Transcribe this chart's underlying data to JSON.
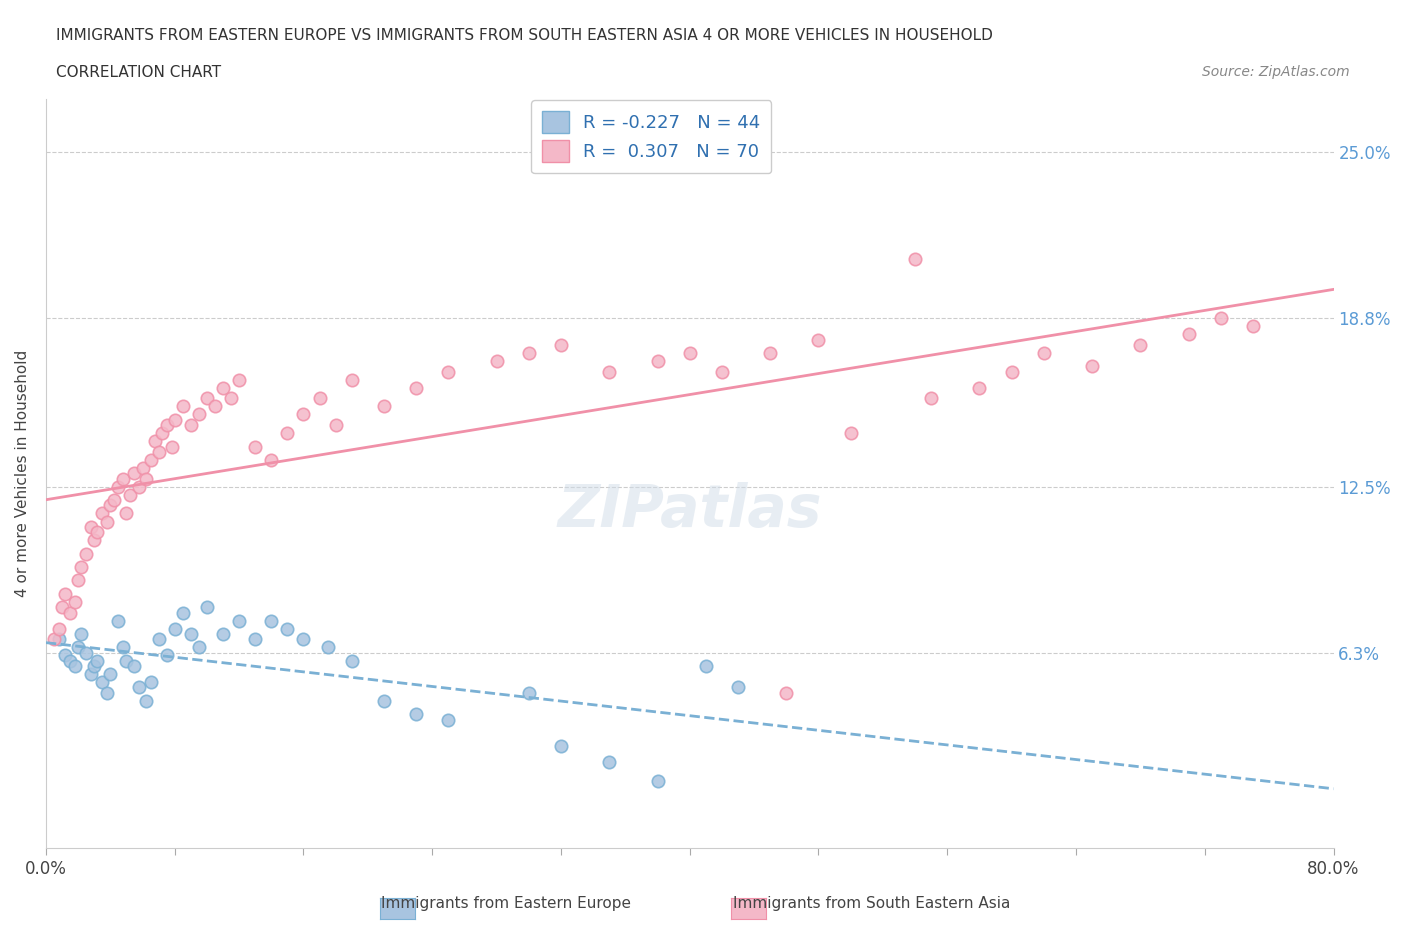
{
  "title_line1": "IMMIGRANTS FROM EASTERN EUROPE VS IMMIGRANTS FROM SOUTH EASTERN ASIA 4 OR MORE VEHICLES IN HOUSEHOLD",
  "title_line2": "CORRELATION CHART",
  "source_text": "Source: ZipAtlas.com",
  "xlabel": "",
  "ylabel": "4 or more Vehicles in Household",
  "xlim": [
    0.0,
    0.8
  ],
  "ylim": [
    -0.01,
    0.27
  ],
  "ytick_labels": [
    "",
    "6.3%",
    "",
    "12.5%",
    "",
    "18.8%",
    "",
    "25.0%"
  ],
  "ytick_values": [
    0.0,
    0.063,
    0.094,
    0.125,
    0.156,
    0.188,
    0.219,
    0.25
  ],
  "xtick_labels": [
    "0.0%",
    "",
    "",
    "",
    "",
    "",
    "",
    "",
    "",
    "",
    "80.0%"
  ],
  "xtick_values": [
    0.0,
    0.08,
    0.16,
    0.24,
    0.32,
    0.4,
    0.48,
    0.56,
    0.64,
    0.72,
    0.8
  ],
  "blue_R": -0.227,
  "blue_N": 44,
  "pink_R": 0.307,
  "pink_N": 70,
  "blue_color": "#a8c4e0",
  "pink_color": "#f4b8c8",
  "blue_line_color": "#7ab0d4",
  "pink_line_color": "#f090a8",
  "blue_points_x": [
    0.008,
    0.012,
    0.015,
    0.018,
    0.02,
    0.022,
    0.025,
    0.028,
    0.03,
    0.032,
    0.035,
    0.038,
    0.04,
    0.045,
    0.048,
    0.05,
    0.055,
    0.058,
    0.062,
    0.065,
    0.07,
    0.075,
    0.08,
    0.085,
    0.09,
    0.095,
    0.1,
    0.11,
    0.12,
    0.13,
    0.14,
    0.15,
    0.16,
    0.175,
    0.19,
    0.21,
    0.23,
    0.25,
    0.3,
    0.32,
    0.35,
    0.38,
    0.41,
    0.43
  ],
  "blue_points_y": [
    0.068,
    0.062,
    0.06,
    0.058,
    0.065,
    0.07,
    0.063,
    0.055,
    0.058,
    0.06,
    0.052,
    0.048,
    0.055,
    0.075,
    0.065,
    0.06,
    0.058,
    0.05,
    0.045,
    0.052,
    0.068,
    0.062,
    0.072,
    0.078,
    0.07,
    0.065,
    0.08,
    0.07,
    0.075,
    0.068,
    0.075,
    0.072,
    0.068,
    0.065,
    0.06,
    0.045,
    0.04,
    0.038,
    0.048,
    0.028,
    0.022,
    0.015,
    0.058,
    0.05
  ],
  "pink_points_x": [
    0.005,
    0.008,
    0.01,
    0.012,
    0.015,
    0.018,
    0.02,
    0.022,
    0.025,
    0.028,
    0.03,
    0.032,
    0.035,
    0.038,
    0.04,
    0.042,
    0.045,
    0.048,
    0.05,
    0.052,
    0.055,
    0.058,
    0.06,
    0.062,
    0.065,
    0.068,
    0.07,
    0.072,
    0.075,
    0.078,
    0.08,
    0.085,
    0.09,
    0.095,
    0.1,
    0.105,
    0.11,
    0.115,
    0.12,
    0.13,
    0.14,
    0.15,
    0.16,
    0.17,
    0.18,
    0.19,
    0.21,
    0.23,
    0.25,
    0.28,
    0.3,
    0.32,
    0.35,
    0.38,
    0.4,
    0.42,
    0.45,
    0.48,
    0.5,
    0.55,
    0.58,
    0.6,
    0.62,
    0.65,
    0.68,
    0.71,
    0.73,
    0.75,
    0.54,
    0.46
  ],
  "pink_points_y": [
    0.068,
    0.072,
    0.08,
    0.085,
    0.078,
    0.082,
    0.09,
    0.095,
    0.1,
    0.11,
    0.105,
    0.108,
    0.115,
    0.112,
    0.118,
    0.12,
    0.125,
    0.128,
    0.115,
    0.122,
    0.13,
    0.125,
    0.132,
    0.128,
    0.135,
    0.142,
    0.138,
    0.145,
    0.148,
    0.14,
    0.15,
    0.155,
    0.148,
    0.152,
    0.158,
    0.155,
    0.162,
    0.158,
    0.165,
    0.14,
    0.135,
    0.145,
    0.152,
    0.158,
    0.148,
    0.165,
    0.155,
    0.162,
    0.168,
    0.172,
    0.175,
    0.178,
    0.168,
    0.172,
    0.175,
    0.168,
    0.175,
    0.18,
    0.145,
    0.158,
    0.162,
    0.168,
    0.175,
    0.17,
    0.178,
    0.182,
    0.188,
    0.185,
    0.21,
    0.048
  ],
  "watermark_text": "ZIPatlas",
  "legend_blue_label": "Immigrants from Eastern Europe",
  "legend_pink_label": "Immigrants from South Eastern Asia",
  "background_color": "#ffffff",
  "grid_color": "#cccccc"
}
